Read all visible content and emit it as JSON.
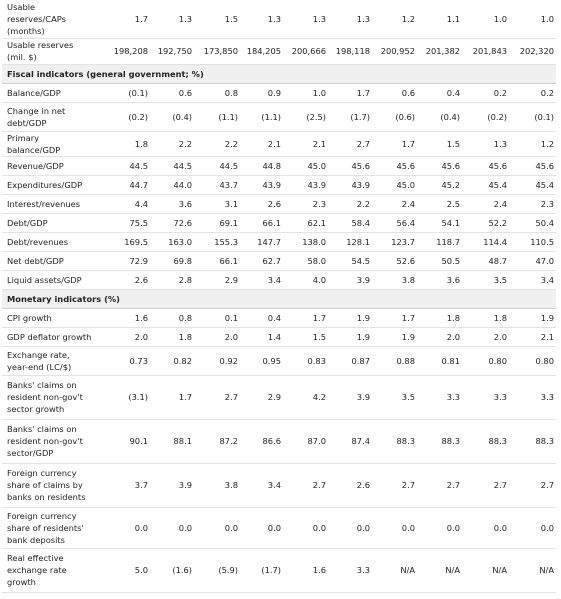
{
  "rows": [
    {
      "type": "data",
      "label": "Usable reserves/CAPs (months)",
      "values": [
        "1.7",
        "1.3",
        "1.5",
        "1.3",
        "1.3",
        "1.3",
        "1.2",
        "1.1",
        "1.0",
        "1.0"
      ]
    },
    {
      "type": "data",
      "label": "Usable reserves (mil. $)",
      "values": [
        "198,208",
        "192,750",
        "173,850",
        "184,205",
        "200,666",
        "198,118",
        "200,952",
        "201,382",
        "201,843",
        "202,320"
      ]
    },
    {
      "type": "section",
      "label": "Fiscal indicators (general government; %)"
    },
    {
      "type": "data",
      "label": "Balance/GDP",
      "values": [
        "(0.1)",
        "0.6",
        "0.8",
        "0.9",
        "1.0",
        "1.7",
        "0.6",
        "0.4",
        "0.2",
        "0.2"
      ]
    },
    {
      "type": "data",
      "label": "Change in net debt/GDP",
      "values": [
        "(0.2)",
        "(0.4)",
        "(1.1)",
        "(1.1)",
        "(2.5)",
        "(1.7)",
        "(0.6)",
        "(0.4)",
        "(0.2)",
        "(0.1)"
      ]
    },
    {
      "type": "data",
      "label": "Primary balance/GDP",
      "values": [
        "1.8",
        "2.2",
        "2.2",
        "2.1",
        "2.1",
        "2.7",
        "1.7",
        "1.5",
        "1.3",
        "1.2"
      ]
    },
    {
      "type": "data",
      "label": "Revenue/GDP",
      "values": [
        "44.5",
        "44.5",
        "44.5",
        "44.8",
        "45.0",
        "45.6",
        "45.6",
        "45.6",
        "45.6",
        "45.6"
      ]
    },
    {
      "type": "data",
      "label": "Expenditures/GDP",
      "values": [
        "44.7",
        "44.0",
        "43.7",
        "43.9",
        "43.9",
        "43.9",
        "45.0",
        "45.2",
        "45.4",
        "45.4"
      ]
    },
    {
      "type": "data",
      "label": "Interest/revenues",
      "values": [
        "4.4",
        "3.6",
        "3.1",
        "2.6",
        "2.3",
        "2.2",
        "2.4",
        "2.5",
        "2.4",
        "2.3"
      ]
    },
    {
      "type": "data",
      "label": "Debt/GDP",
      "values": [
        "75.5",
        "72.6",
        "69.1",
        "66.1",
        "62.1",
        "58.4",
        "56.4",
        "54.1",
        "52.2",
        "50.4"
      ]
    },
    {
      "type": "data",
      "label": "Debt/revenues",
      "values": [
        "169.5",
        "163.0",
        "155.3",
        "147.7",
        "138.0",
        "128.1",
        "123.7",
        "118.7",
        "114.4",
        "110.5"
      ]
    },
    {
      "type": "data",
      "label": "Net debt/GDP",
      "values": [
        "72.9",
        "69.8",
        "66.1",
        "62.7",
        "58.0",
        "54.5",
        "52.6",
        "50.5",
        "48.7",
        "47.0"
      ]
    },
    {
      "type": "data",
      "label": "Liquid assets/GDP",
      "values": [
        "2.6",
        "2.8",
        "2.9",
        "3.4",
        "4.0",
        "3.9",
        "3.8",
        "3.6",
        "3.5",
        "3.4"
      ]
    },
    {
      "type": "section",
      "label": "Monetary indicators (%)"
    },
    {
      "type": "data",
      "label": "CPI growth",
      "values": [
        "1.6",
        "0.8",
        "0.1",
        "0.4",
        "1.7",
        "1.9",
        "1.7",
        "1.8",
        "1.8",
        "1.9"
      ]
    },
    {
      "type": "data",
      "label": "GDP deflator growth",
      "values": [
        "2.0",
        "1.8",
        "2.0",
        "1.4",
        "1.5",
        "1.9",
        "1.9",
        "2.0",
        "2.0",
        "2.1"
      ]
    },
    {
      "type": "data",
      "label": "Exchange rate, year-end (LC/$)",
      "values": [
        "0.73",
        "0.82",
        "0.92",
        "0.95",
        "0.83",
        "0.87",
        "0.88",
        "0.81",
        "0.80",
        "0.80"
      ]
    },
    {
      "type": "data",
      "label": "Banks' claims on resident non-gov't sector growth",
      "values": [
        "(3.1)",
        "1.7",
        "2.7",
        "2.9",
        "4.2",
        "3.9",
        "3.5",
        "3.3",
        "3.3",
        "3.3"
      ]
    },
    {
      "type": "data",
      "label": "Banks' claims on resident non-gov't sector/GDP",
      "values": [
        "90.1",
        "88.1",
        "87.2",
        "86.6",
        "87.0",
        "87.4",
        "88.3",
        "88.3",
        "88.3",
        "88.3"
      ]
    },
    {
      "type": "data",
      "label": "Foreign currency share of claims by banks on residents",
      "values": [
        "3.7",
        "3.9",
        "3.8",
        "3.4",
        "2.7",
        "2.6",
        "2.7",
        "2.7",
        "2.7",
        "2.7"
      ]
    },
    {
      "type": "data",
      "label": "Foreign currency share of residents' bank deposits",
      "values": [
        "0.0",
        "0.0",
        "0.0",
        "0.0",
        "0.0",
        "0.0",
        "0.0",
        "0.0",
        "0.0",
        "0.0"
      ]
    },
    {
      "type": "data",
      "label": "Real effective exchange rate growth",
      "values": [
        "5.0",
        "(1.6)",
        "(5.9)",
        "(1.7)",
        "1.6",
        "3.3",
        "N/A",
        "N/A",
        "N/A",
        "N/A"
      ]
    }
  ]
}
